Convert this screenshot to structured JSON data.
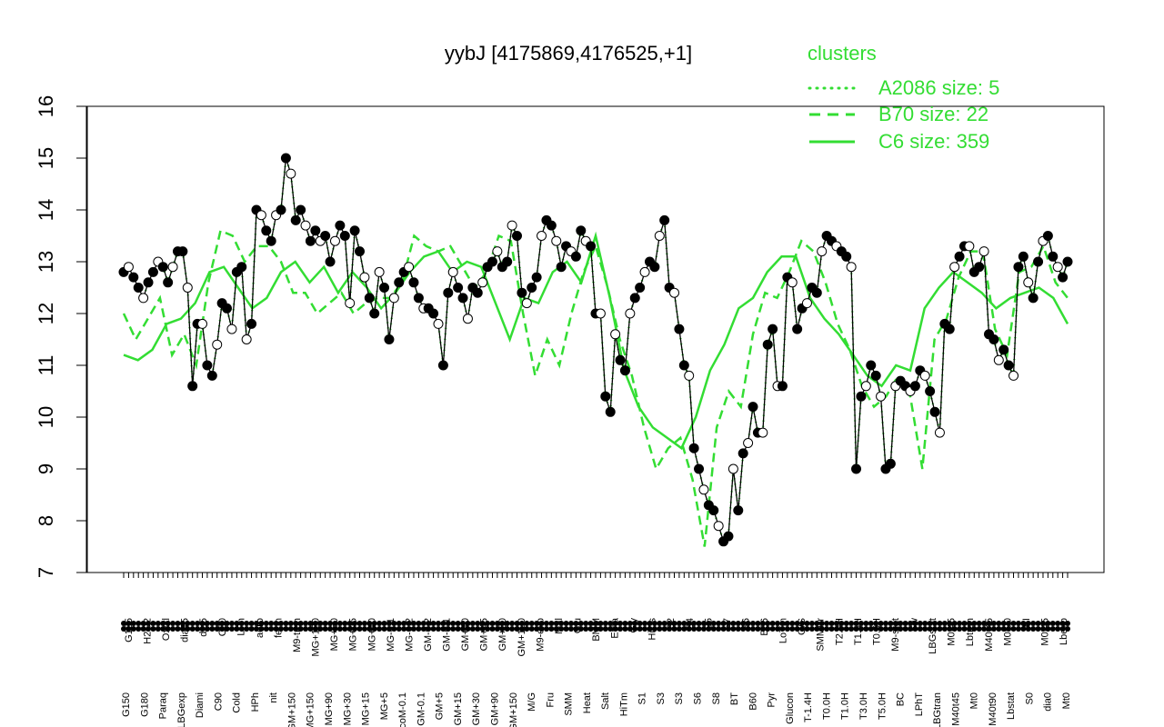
{
  "chart_data": {
    "type": "line",
    "title": "yybJ [4175869,4176525,+1]",
    "xlabel": "",
    "ylabel": "",
    "ylim": [
      7,
      16
    ],
    "yticks": [
      7,
      8,
      9,
      10,
      11,
      12,
      13,
      14,
      15,
      16
    ],
    "grid": false,
    "legend": {
      "title": "clusters",
      "placement": "top-right",
      "entries": [
        {
          "label": "A2086 size: 5",
          "style": "dotted"
        },
        {
          "label": "B70 size: 22",
          "style": "dashed"
        },
        {
          "label": "C6 size: 359",
          "style": "solid"
        }
      ]
    },
    "colors": {
      "cluster_line": "#33dd33",
      "series_line": "#000000",
      "axis": "#000000",
      "legend_text": "#33dd33"
    },
    "top_labels": [
      "G135",
      "H2O2",
      "Oxctl",
      "dia15",
      "dia5",
      "C30",
      "LPh",
      "aero",
      "ferm",
      "M9-tran",
      "MG+120",
      "MG+60",
      "MG+45",
      "MG+10",
      "MG-0.1",
      "MG-0.2",
      "GM-0.2",
      "GM-0.1",
      "GM+10",
      "GM+45",
      "GM+60",
      "GM+120",
      "M9-exp",
      "Mal",
      "Glu",
      "BMM",
      "Etha",
      "Gly",
      "HiOs",
      "S2",
      "S4",
      "S5",
      "S7",
      "S6",
      "B36",
      "LoTm",
      "G/S",
      "SMMPr",
      "T2.0H",
      "T1.5H",
      "T0.5H",
      "M9-stat",
      "Sw",
      "LBGstat",
      "M0t45",
      "Lbtran",
      "M40t45",
      "M0t90",
      "BI",
      "M0t45",
      "Lbexp"
    ],
    "bottom_labels": [
      "G150",
      "G180",
      "Paraq",
      "LBGexp",
      "Diami",
      "C90",
      "Cold",
      "HPh",
      "nit",
      "GM+150",
      "MG+150",
      "MG+90",
      "MG+30",
      "MG+15",
      "MG+5",
      "GlucoM-0.1",
      "GM-0.1",
      "GM+5",
      "GM+15",
      "GM+30",
      "GM+90",
      "GM+150",
      "M/G",
      "Fru",
      "SMM",
      "Heat",
      "Salt",
      "HiTm",
      "S1",
      "S3",
      "S3",
      "S6",
      "S8",
      "BT",
      "B60",
      "Pyr",
      "Glucon",
      "T-1.4H",
      "T0.0H",
      "T1.0H",
      "T3.0H",
      "T5.0H",
      "BC",
      "LPhT",
      "LBGtran",
      "M40t45",
      "Mt0",
      "M40t90",
      "Lbstat",
      "S0",
      "dia0",
      "Mt0"
    ],
    "series": [
      {
        "values": [
          12.8,
          12.9,
          12.7,
          12.5,
          12.3,
          12.6,
          12.8,
          13.0,
          12.9,
          12.6,
          12.9,
          13.2,
          13.2,
          12.5,
          10.6,
          11.8,
          11.8,
          11.0,
          10.8,
          11.4,
          12.2,
          12.1,
          11.7,
          12.8,
          12.9,
          11.5,
          11.8,
          14.0,
          13.9,
          13.6,
          13.4,
          13.9,
          14.0,
          15.0,
          14.7,
          13.8,
          14.0,
          13.7,
          13.4,
          13.6,
          13.4,
          13.5,
          13.0,
          13.4,
          13.7,
          13.5,
          12.2,
          13.6,
          13.2,
          12.7,
          12.3,
          12.0,
          12.8,
          12.5,
          11.5,
          12.3,
          12.6,
          12.8,
          12.9,
          12.6,
          12.3,
          12.1,
          12.1,
          12.0,
          11.8,
          11.0,
          12.4,
          12.8,
          12.5,
          12.3,
          11.9,
          12.5,
          12.4,
          12.6,
          12.9,
          13.0,
          13.2,
          12.9,
          13.0,
          13.7,
          13.5,
          12.4,
          12.2,
          12.5,
          12.7,
          13.5,
          13.8,
          13.7,
          13.4,
          12.9,
          13.3,
          13.2,
          13.1,
          13.6,
          13.4,
          13.3,
          12.0,
          12.0,
          10.4,
          10.1,
          11.6,
          11.1,
          10.9,
          12.0,
          12.3,
          12.5,
          12.8,
          13.0,
          12.9,
          13.5,
          13.8,
          12.5,
          12.4,
          11.7,
          11.0,
          10.8,
          9.4,
          9.0,
          8.6,
          8.3,
          8.2,
          7.9,
          7.6,
          7.7,
          9.0,
          8.2,
          9.3,
          9.5,
          10.2,
          9.7,
          9.7,
          11.4,
          11.7,
          10.6,
          10.6,
          12.7,
          12.6,
          11.7,
          12.1,
          12.2,
          12.5,
          12.4,
          13.2,
          13.5,
          13.4,
          13.3,
          13.2,
          13.1,
          12.9,
          9.0,
          10.4,
          10.6,
          11.0,
          10.8,
          10.4,
          9.0,
          9.1,
          10.6,
          10.7,
          10.6,
          10.5,
          10.6,
          10.9,
          10.8,
          10.5,
          10.1,
          9.7,
          11.8,
          11.7,
          12.9,
          13.1,
          13.3,
          13.3,
          12.8,
          12.9,
          13.2,
          11.6,
          11.5,
          11.1,
          11.3,
          11.0,
          10.8,
          12.9,
          13.1,
          12.6,
          12.3,
          13.0,
          13.4,
          13.5,
          13.1,
          12.9,
          12.7,
          13.0
        ]
      },
      {
        "values": [
          12.0,
          11.5,
          11.9,
          12.3,
          11.2,
          11.6,
          11.0,
          12.6,
          13.6,
          13.5,
          13.0,
          13.3,
          13.3,
          13.0,
          12.4,
          12.4,
          12.0,
          12.2,
          12.4,
          12.0,
          12.2,
          12.3,
          12.3,
          12.6,
          13.5,
          13.3,
          13.2,
          13.3,
          12.9,
          12.5,
          12.8,
          13.5,
          13.4,
          12.0,
          10.8,
          11.5,
          11.0,
          12.0,
          12.8,
          13.3,
          12.5,
          11.5,
          10.8,
          9.8,
          9.0,
          9.4,
          9.6,
          8.8,
          7.5,
          9.8,
          10.5,
          10.2,
          11.6,
          12.4,
          12.3,
          12.8,
          13.4,
          13.2,
          12.6,
          11.8,
          11.3,
          10.6,
          10.2,
          10.4,
          10.8,
          10.4,
          9.0,
          11.5,
          11.9,
          12.7,
          13.2,
          13.2,
          11.7,
          11.2,
          12.8,
          12.9,
          13.3,
          12.6,
          12.3
        ]
      },
      {
        "values": [
          11.2,
          11.1,
          11.3,
          11.8,
          11.9,
          12.2,
          12.8,
          12.9,
          12.5,
          12.1,
          12.3,
          12.8,
          13.0,
          12.6,
          12.9,
          12.4,
          12.8,
          12.5,
          12.1,
          12.4,
          12.8,
          13.1,
          13.2,
          12.8,
          13.0,
          12.9,
          12.2,
          11.5,
          12.3,
          12.2,
          12.8,
          13.0,
          12.6,
          13.5,
          12.3,
          10.9,
          10.2,
          9.8,
          9.6,
          9.4,
          10.0,
          10.9,
          11.4,
          12.1,
          12.3,
          12.8,
          13.1,
          13.1,
          12.3,
          11.9,
          11.6,
          11.2,
          10.8,
          10.6,
          11.0,
          10.9,
          12.1,
          12.5,
          12.8,
          12.6,
          12.4,
          12.1,
          12.3,
          12.4,
          12.5,
          12.3,
          11.8
        ]
      }
    ]
  }
}
